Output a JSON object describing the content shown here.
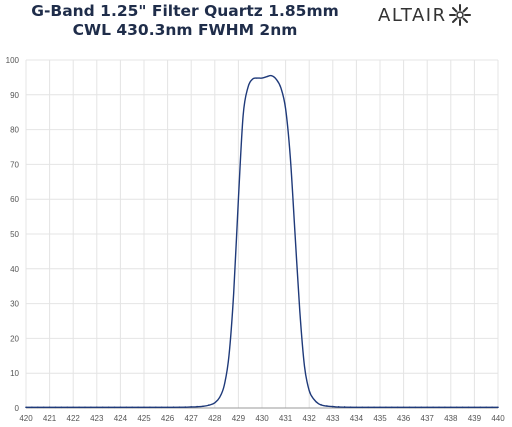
{
  "title_line1": "G-Band 1.25\" Filter Quartz 1.85mm",
  "title_line2": "CWL 430.3nm FWHM 2nm",
  "logo_text": "ALTAIR",
  "colors": {
    "line": "#1f3a7a",
    "grid": "#e4e4e4",
    "title": "#1f2d4a"
  },
  "chart_data": {
    "type": "line",
    "title": "G-Band 1.25\" Filter Quartz 1.85mm CWL 430.3nm FWHM 2nm",
    "xlabel": "",
    "ylabel": "",
    "xlim": [
      420,
      440
    ],
    "ylim": [
      0,
      100
    ],
    "grid": true,
    "legend": "none",
    "x_ticks": [
      "420",
      "421",
      "422",
      "423",
      "424",
      "425",
      "426",
      "427",
      "428",
      "429",
      "430",
      "431",
      "432",
      "433",
      "434",
      "435",
      "436",
      "437",
      "438",
      "439",
      "440"
    ],
    "y_ticks": [
      "0",
      "10",
      "20",
      "30",
      "40",
      "50",
      "60",
      "70",
      "80",
      "90",
      "100"
    ],
    "series": [
      {
        "x": [
          420,
          426,
          427,
          427.5,
          427.8,
          428,
          428.2,
          428.4,
          428.6,
          428.8,
          429,
          429.2,
          429.4,
          429.6,
          429.8,
          430,
          430.2,
          430.4,
          430.6,
          430.8,
          431,
          431.2,
          431.4,
          431.6,
          431.8,
          432,
          432.2,
          432.4,
          432.6,
          433,
          434,
          440
        ],
        "y": [
          0.2,
          0.2,
          0.3,
          0.5,
          0.9,
          1.5,
          3,
          6.5,
          15,
          33,
          60,
          84,
          92,
          94.5,
          94.8,
          94.8,
          95.2,
          95.5,
          94.5,
          92,
          86,
          72,
          50,
          28,
          12,
          5,
          2.5,
          1.2,
          0.7,
          0.4,
          0.2,
          0.2
        ]
      }
    ]
  }
}
